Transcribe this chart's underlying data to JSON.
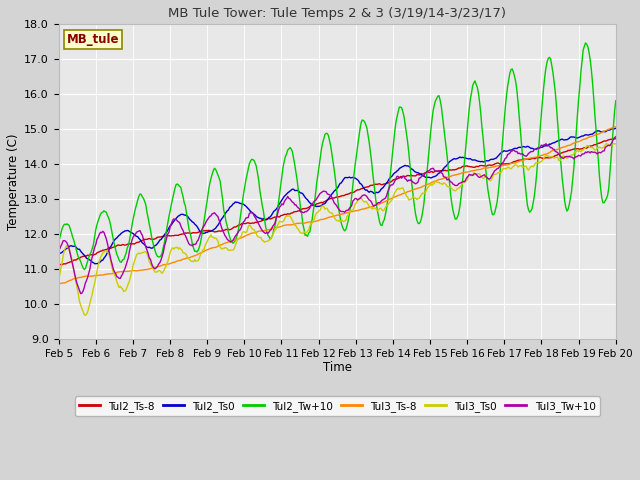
{
  "title": "MB Tule Tower: Tule Temps 2 & 3 (3/19/14-3/23/17)",
  "xlabel": "Time",
  "ylabel": "Temperature (C)",
  "ylim": [
    9.0,
    18.0
  ],
  "yticks": [
    9.0,
    10.0,
    11.0,
    12.0,
    13.0,
    14.0,
    15.0,
    16.0,
    17.0,
    18.0
  ],
  "xtick_labels": [
    "Feb 5",
    "Feb 6",
    "Feb 7",
    "Feb 8",
    "Feb 9",
    "Feb 10",
    "Feb 11",
    "Feb 12",
    "Feb 13",
    "Feb 14",
    "Feb 15",
    "Feb 16",
    "Feb 17",
    "Feb 18",
    "Feb 19",
    "Feb 20"
  ],
  "series_colors": {
    "Tul2_Ts-8": "#cc0000",
    "Tul2_Ts0": "#0000cc",
    "Tul2_Tw+10": "#00cc00",
    "Tul3_Ts-8": "#ff8800",
    "Tul3_Ts0": "#cccc00",
    "Tul3_Tw+10": "#aa00aa"
  },
  "legend_label": "MB_tule",
  "legend_box_facecolor": "#ffffcc",
  "legend_box_edgecolor": "#888800",
  "legend_text_color": "#880000",
  "fig_facecolor": "#d4d4d4",
  "plot_facecolor": "#e8e8e8"
}
